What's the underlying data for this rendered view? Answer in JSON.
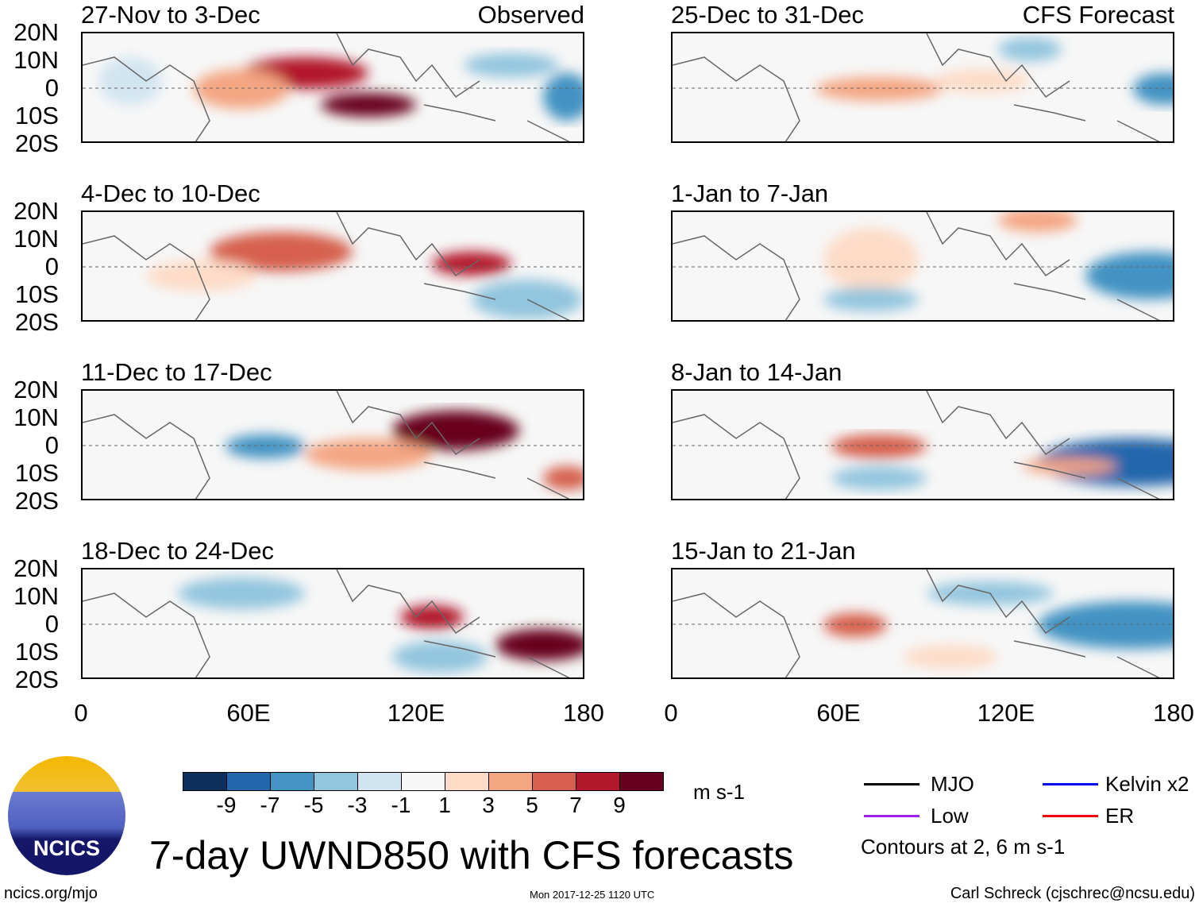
{
  "panels_left": [
    {
      "title": "27-Nov to 3-Dec",
      "label": "Observed"
    },
    {
      "title": "4-Dec to 10-Dec"
    },
    {
      "title": "11-Dec to 17-Dec"
    },
    {
      "title": "18-Dec to 24-Dec"
    }
  ],
  "panels_right": [
    {
      "title": "25-Dec to 31-Dec",
      "label": "CFS Forecast"
    },
    {
      "title": "1-Jan to 7-Jan"
    },
    {
      "title": "8-Jan to 14-Jan"
    },
    {
      "title": "15-Jan to 21-Jan"
    }
  ],
  "lat_labels": [
    "20N",
    "10N",
    "0",
    "10S",
    "20S"
  ],
  "lon_labels": [
    "0",
    "60E",
    "120E",
    "180"
  ],
  "colorbar": {
    "colors": [
      "#0d2f5e",
      "#2266ac",
      "#4393c3",
      "#92c5de",
      "#d1e5f0",
      "#f7f7f7",
      "#fddbc7",
      "#f4a582",
      "#d6604d",
      "#b2182b",
      "#67001f"
    ],
    "labels": [
      "-9",
      "-7",
      "-5",
      "-3",
      "-1",
      "1",
      "3",
      "5",
      "7",
      "9"
    ],
    "units": "m s-1"
  },
  "legend": {
    "items": [
      {
        "label": "MJO",
        "color": "#000000"
      },
      {
        "label": "Kelvin x2",
        "color": "#0000ff"
      },
      {
        "label": "Low",
        "color": "#a020f0"
      },
      {
        "label": "ER",
        "color": "#ff0000"
      }
    ],
    "note": "Contours at 2, 6 m s-1"
  },
  "title": "7-day UWND850 with CFS forecasts",
  "logo_text": "NCICS",
  "footer": {
    "url": "ncics.org/mjo",
    "timestamp": "Mon 2017-12-25 1120 UTC",
    "author": "Carl Schreck (cjschrec@ncsu.edu)"
  }
}
